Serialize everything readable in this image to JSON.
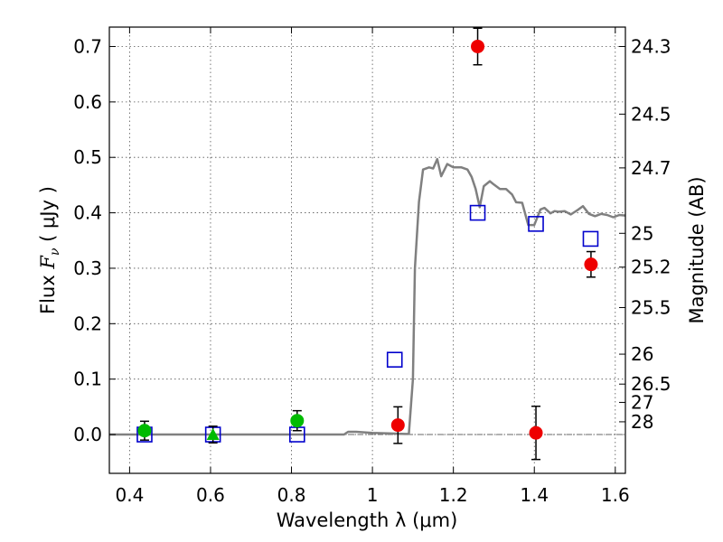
{
  "chart_data": {
    "type": "scatter",
    "xlabel": "Wavelength  λ (μm)",
    "ylabel_left": {
      "prefix": "Flux  ",
      "symbol": "F",
      "subscript": "ν",
      "unit": "  ( μJy )"
    },
    "ylabel_right": "Magnitude (AB)",
    "xlim": [
      0.35,
      1.625
    ],
    "ylim": [
      -0.07,
      0.735
    ],
    "grid": true,
    "x_ticks": [
      0.4,
      0.6,
      0.8,
      1.0,
      1.2,
      1.4,
      1.6
    ],
    "x_tick_labels": [
      "0.4",
      "0.6",
      "0.8",
      "1",
      "1.2",
      "1.4",
      "1.6"
    ],
    "y_ticks": [
      0.0,
      0.1,
      0.2,
      0.3,
      0.4,
      0.5,
      0.6,
      0.7
    ],
    "y_tick_labels": [
      "0.0",
      "0.1",
      "0.2",
      "0.3",
      "0.4",
      "0.5",
      "0.6",
      "0.7"
    ],
    "right_ticks": [
      {
        "label": "24.3",
        "flux": 0.7
      },
      {
        "label": "24.5",
        "flux": 0.578
      },
      {
        "label": "24.7",
        "flux": 0.481
      },
      {
        "label": "25",
        "flux": 0.363
      },
      {
        "label": "25.2",
        "flux": 0.302
      },
      {
        "label": "25.5",
        "flux": 0.229
      },
      {
        "label": "26",
        "flux": 0.145
      },
      {
        "label": "26.5",
        "flux": 0.091
      },
      {
        "label": "27",
        "flux": 0.058
      },
      {
        "label": "28",
        "flux": 0.023
      }
    ],
    "series": [
      {
        "marker": "line",
        "color": "#808080",
        "x": [
          0.35,
          0.93,
          0.94,
          0.96,
          1.0,
          1.04,
          1.08,
          1.09,
          1.1,
          1.105,
          1.115,
          1.125,
          1.14,
          1.15,
          1.16,
          1.17,
          1.185,
          1.2,
          1.22,
          1.235,
          1.245,
          1.255,
          1.265,
          1.275,
          1.29,
          1.3,
          1.315,
          1.33,
          1.345,
          1.355,
          1.37,
          1.385,
          1.4,
          1.415,
          1.425,
          1.44,
          1.45,
          1.46,
          1.475,
          1.49,
          1.505,
          1.52,
          1.535,
          1.55,
          1.565,
          1.58,
          1.595,
          1.61,
          1.625
        ],
        "y": [
          0.0,
          0.0,
          0.005,
          0.005,
          0.003,
          0.002,
          0.001,
          0.001,
          0.1,
          0.3,
          0.42,
          0.478,
          0.482,
          0.48,
          0.497,
          0.466,
          0.488,
          0.482,
          0.482,
          0.478,
          0.465,
          0.443,
          0.41,
          0.448,
          0.457,
          0.451,
          0.443,
          0.443,
          0.433,
          0.419,
          0.418,
          0.378,
          0.378,
          0.406,
          0.409,
          0.399,
          0.403,
          0.402,
          0.403,
          0.397,
          0.404,
          0.412,
          0.398,
          0.394,
          0.398,
          0.396,
          0.392,
          0.396,
          0.395
        ]
      },
      {
        "marker": "square",
        "color": "#0000cc",
        "x": [
          0.437,
          0.606,
          0.814,
          1.055,
          1.26,
          1.404,
          1.539
        ],
        "y": [
          0.0,
          0.0,
          0.0,
          0.135,
          0.4,
          0.38,
          0.353
        ]
      },
      {
        "marker": "circle",
        "color": "#00bb00",
        "x": [
          0.437,
          0.814
        ],
        "y": [
          0.007,
          0.025
        ],
        "err": [
          0.017,
          0.018
        ]
      },
      {
        "marker": "triangle",
        "color": "#00bb00",
        "x": [
          0.606
        ],
        "y": [
          0.0
        ],
        "err": [
          0.015
        ]
      },
      {
        "marker": "circle",
        "color": "#ee0000",
        "x": [
          1.063,
          1.26,
          1.404,
          1.54
        ],
        "y": [
          0.017,
          0.7,
          0.003,
          0.307
        ],
        "err": [
          0.033,
          0.033,
          0.048,
          0.023
        ]
      }
    ]
  }
}
